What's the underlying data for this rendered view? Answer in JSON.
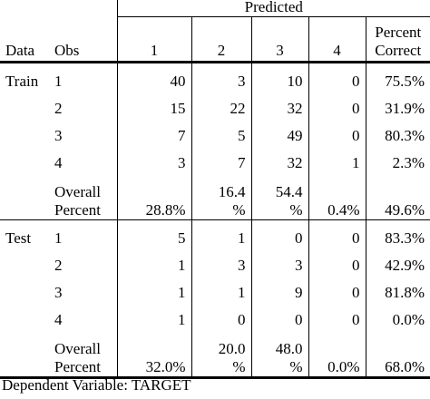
{
  "header": {
    "predicted": "Predicted",
    "data": "Data",
    "obs": "Obs",
    "col1": "1",
    "col2": "2",
    "col3": "3",
    "col4": "4",
    "percent_correct_line1": "Percent",
    "percent_correct_line2": "Correct"
  },
  "train": {
    "label": "Train",
    "rows": [
      {
        "obs": "1",
        "c1": "40",
        "c2": "3",
        "c3": "10",
        "c4": "0",
        "pc": "75.5%"
      },
      {
        "obs": "2",
        "c1": "15",
        "c2": "22",
        "c3": "32",
        "c4": "0",
        "pc": "31.9%"
      },
      {
        "obs": "3",
        "c1": "7",
        "c2": "5",
        "c3": "49",
        "c4": "0",
        "pc": "80.3%"
      },
      {
        "obs": "4",
        "c1": "3",
        "c2": "7",
        "c3": "32",
        "c4": "1",
        "pc": "2.3%"
      }
    ],
    "overall": {
      "label1": "Overall",
      "label2": "Percent",
      "c1": "28.8%",
      "c2a": "16.4",
      "c2b": "%",
      "c3a": "54.4",
      "c3b": "%",
      "c4": "0.4%",
      "pc": "49.6%"
    }
  },
  "test": {
    "label": "Test",
    "rows": [
      {
        "obs": "1",
        "c1": "5",
        "c2": "1",
        "c3": "0",
        "c4": "0",
        "pc": "83.3%"
      },
      {
        "obs": "2",
        "c1": "1",
        "c2": "3",
        "c3": "3",
        "c4": "0",
        "pc": "42.9%"
      },
      {
        "obs": "3",
        "c1": "1",
        "c2": "1",
        "c3": "9",
        "c4": "0",
        "pc": "81.8%"
      },
      {
        "obs": "4",
        "c1": "1",
        "c2": "0",
        "c3": "0",
        "c4": "0",
        "pc": "0.0%"
      }
    ],
    "overall": {
      "label1": "Overall",
      "label2": "Percent",
      "c1": "32.0%",
      "c2a": "20.0",
      "c2b": "%",
      "c3a": "48.0",
      "c3b": "%",
      "c4": "0.0%",
      "pc": "68.0%"
    }
  },
  "footer": "Dependent Variable: TARGET"
}
